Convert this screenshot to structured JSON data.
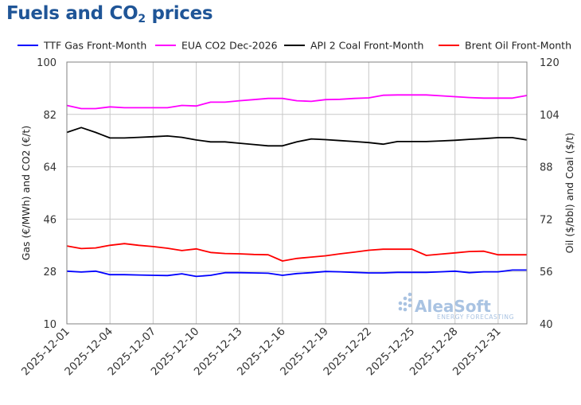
{
  "title": {
    "prefix": "Fuels and CO",
    "sub": "2",
    "suffix": " prices"
  },
  "watermark": {
    "main": "AleaSoft",
    "sub": "ENERGY FORECASTING"
  },
  "chart_data": {
    "type": "line",
    "title": "Fuels and CO2 prices",
    "ylabel": "Gas (€/MWh) and CO2 (€/t)",
    "y2label": "Oil ($/bbl) and Coal ($/t)",
    "ylim": [
      10,
      100
    ],
    "y_ticks": [
      10,
      28,
      46,
      64,
      82,
      100
    ],
    "y2lim": [
      40,
      120
    ],
    "y2_ticks": [
      40,
      56,
      72,
      88,
      104,
      120
    ],
    "grid": true,
    "legend_position": "top",
    "x": [
      "2025-12-01",
      "2025-12-02",
      "2025-12-03",
      "2025-12-04",
      "2025-12-05",
      "2025-12-06",
      "2025-12-07",
      "2025-12-08",
      "2025-12-09",
      "2025-12-10",
      "2025-12-11",
      "2025-12-12",
      "2025-12-13",
      "2025-12-14",
      "2025-12-15",
      "2025-12-16",
      "2025-12-17",
      "2025-12-18",
      "2025-12-19",
      "2025-12-20",
      "2025-12-21",
      "2025-12-22",
      "2025-12-23",
      "2025-12-24",
      "2025-12-25",
      "2025-12-26",
      "2025-12-27",
      "2025-12-28",
      "2025-12-29",
      "2025-12-30",
      "2025-12-31",
      "2026-01-01",
      "2026-01-02"
    ],
    "x_tick_labels": [
      "2025-12-01",
      "2025-12-04",
      "2025-12-07",
      "2025-12-10",
      "2025-12-13",
      "2025-12-16",
      "2025-12-19",
      "2025-12-22",
      "2025-12-25",
      "2025-12-28",
      "2025-12-31"
    ],
    "series": [
      {
        "name": "TTF Gas Front-Month",
        "axis": "left",
        "color": "#0000ff",
        "values": [
          28.1,
          27.8,
          28.1,
          26.9,
          26.9,
          26.8,
          26.7,
          26.6,
          27.2,
          26.3,
          26.7,
          27.6,
          27.6,
          27.5,
          27.4,
          26.7,
          27.3,
          27.6,
          28.0,
          27.9,
          27.7,
          27.5,
          27.5,
          27.7,
          27.7,
          27.7,
          27.9,
          28.1,
          27.6,
          27.9,
          27.9,
          28.5,
          28.5
        ]
      },
      {
        "name": "EUA CO2 Dec-2026",
        "axis": "left",
        "color": "#ff00ff",
        "values": [
          85.1,
          84.0,
          84.0,
          84.6,
          84.3,
          84.3,
          84.3,
          84.3,
          85.1,
          84.9,
          86.2,
          86.2,
          86.7,
          87.1,
          87.5,
          87.5,
          86.7,
          86.5,
          87.1,
          87.2,
          87.5,
          87.7,
          88.6,
          88.7,
          88.7,
          88.7,
          88.4,
          88.1,
          87.8,
          87.6,
          87.6,
          87.6,
          88.5
        ]
      },
      {
        "name": "API 2 Coal Front-Month",
        "axis": "right",
        "color": "#000000",
        "values": [
          98.5,
          100.0,
          98.5,
          96.8,
          96.8,
          97.0,
          97.2,
          97.4,
          97.0,
          96.2,
          95.6,
          95.6,
          95.2,
          94.8,
          94.4,
          94.4,
          95.6,
          96.5,
          96.3,
          96.0,
          95.7,
          95.4,
          94.9,
          95.7,
          95.7,
          95.7,
          95.9,
          96.1,
          96.4,
          96.6,
          96.9,
          96.9,
          96.2
        ]
      },
      {
        "name": "Brent Oil Front-Month",
        "axis": "right",
        "color": "#ff0000",
        "values": [
          63.8,
          63.0,
          63.2,
          64.0,
          64.5,
          64.0,
          63.6,
          63.1,
          62.4,
          62.9,
          61.8,
          61.5,
          61.4,
          61.2,
          61.1,
          59.2,
          60.0,
          60.4,
          60.8,
          61.4,
          61.9,
          62.5,
          62.8,
          62.8,
          62.8,
          60.9,
          61.3,
          61.7,
          62.1,
          62.2,
          61.1,
          61.1,
          61.1
        ]
      }
    ]
  }
}
